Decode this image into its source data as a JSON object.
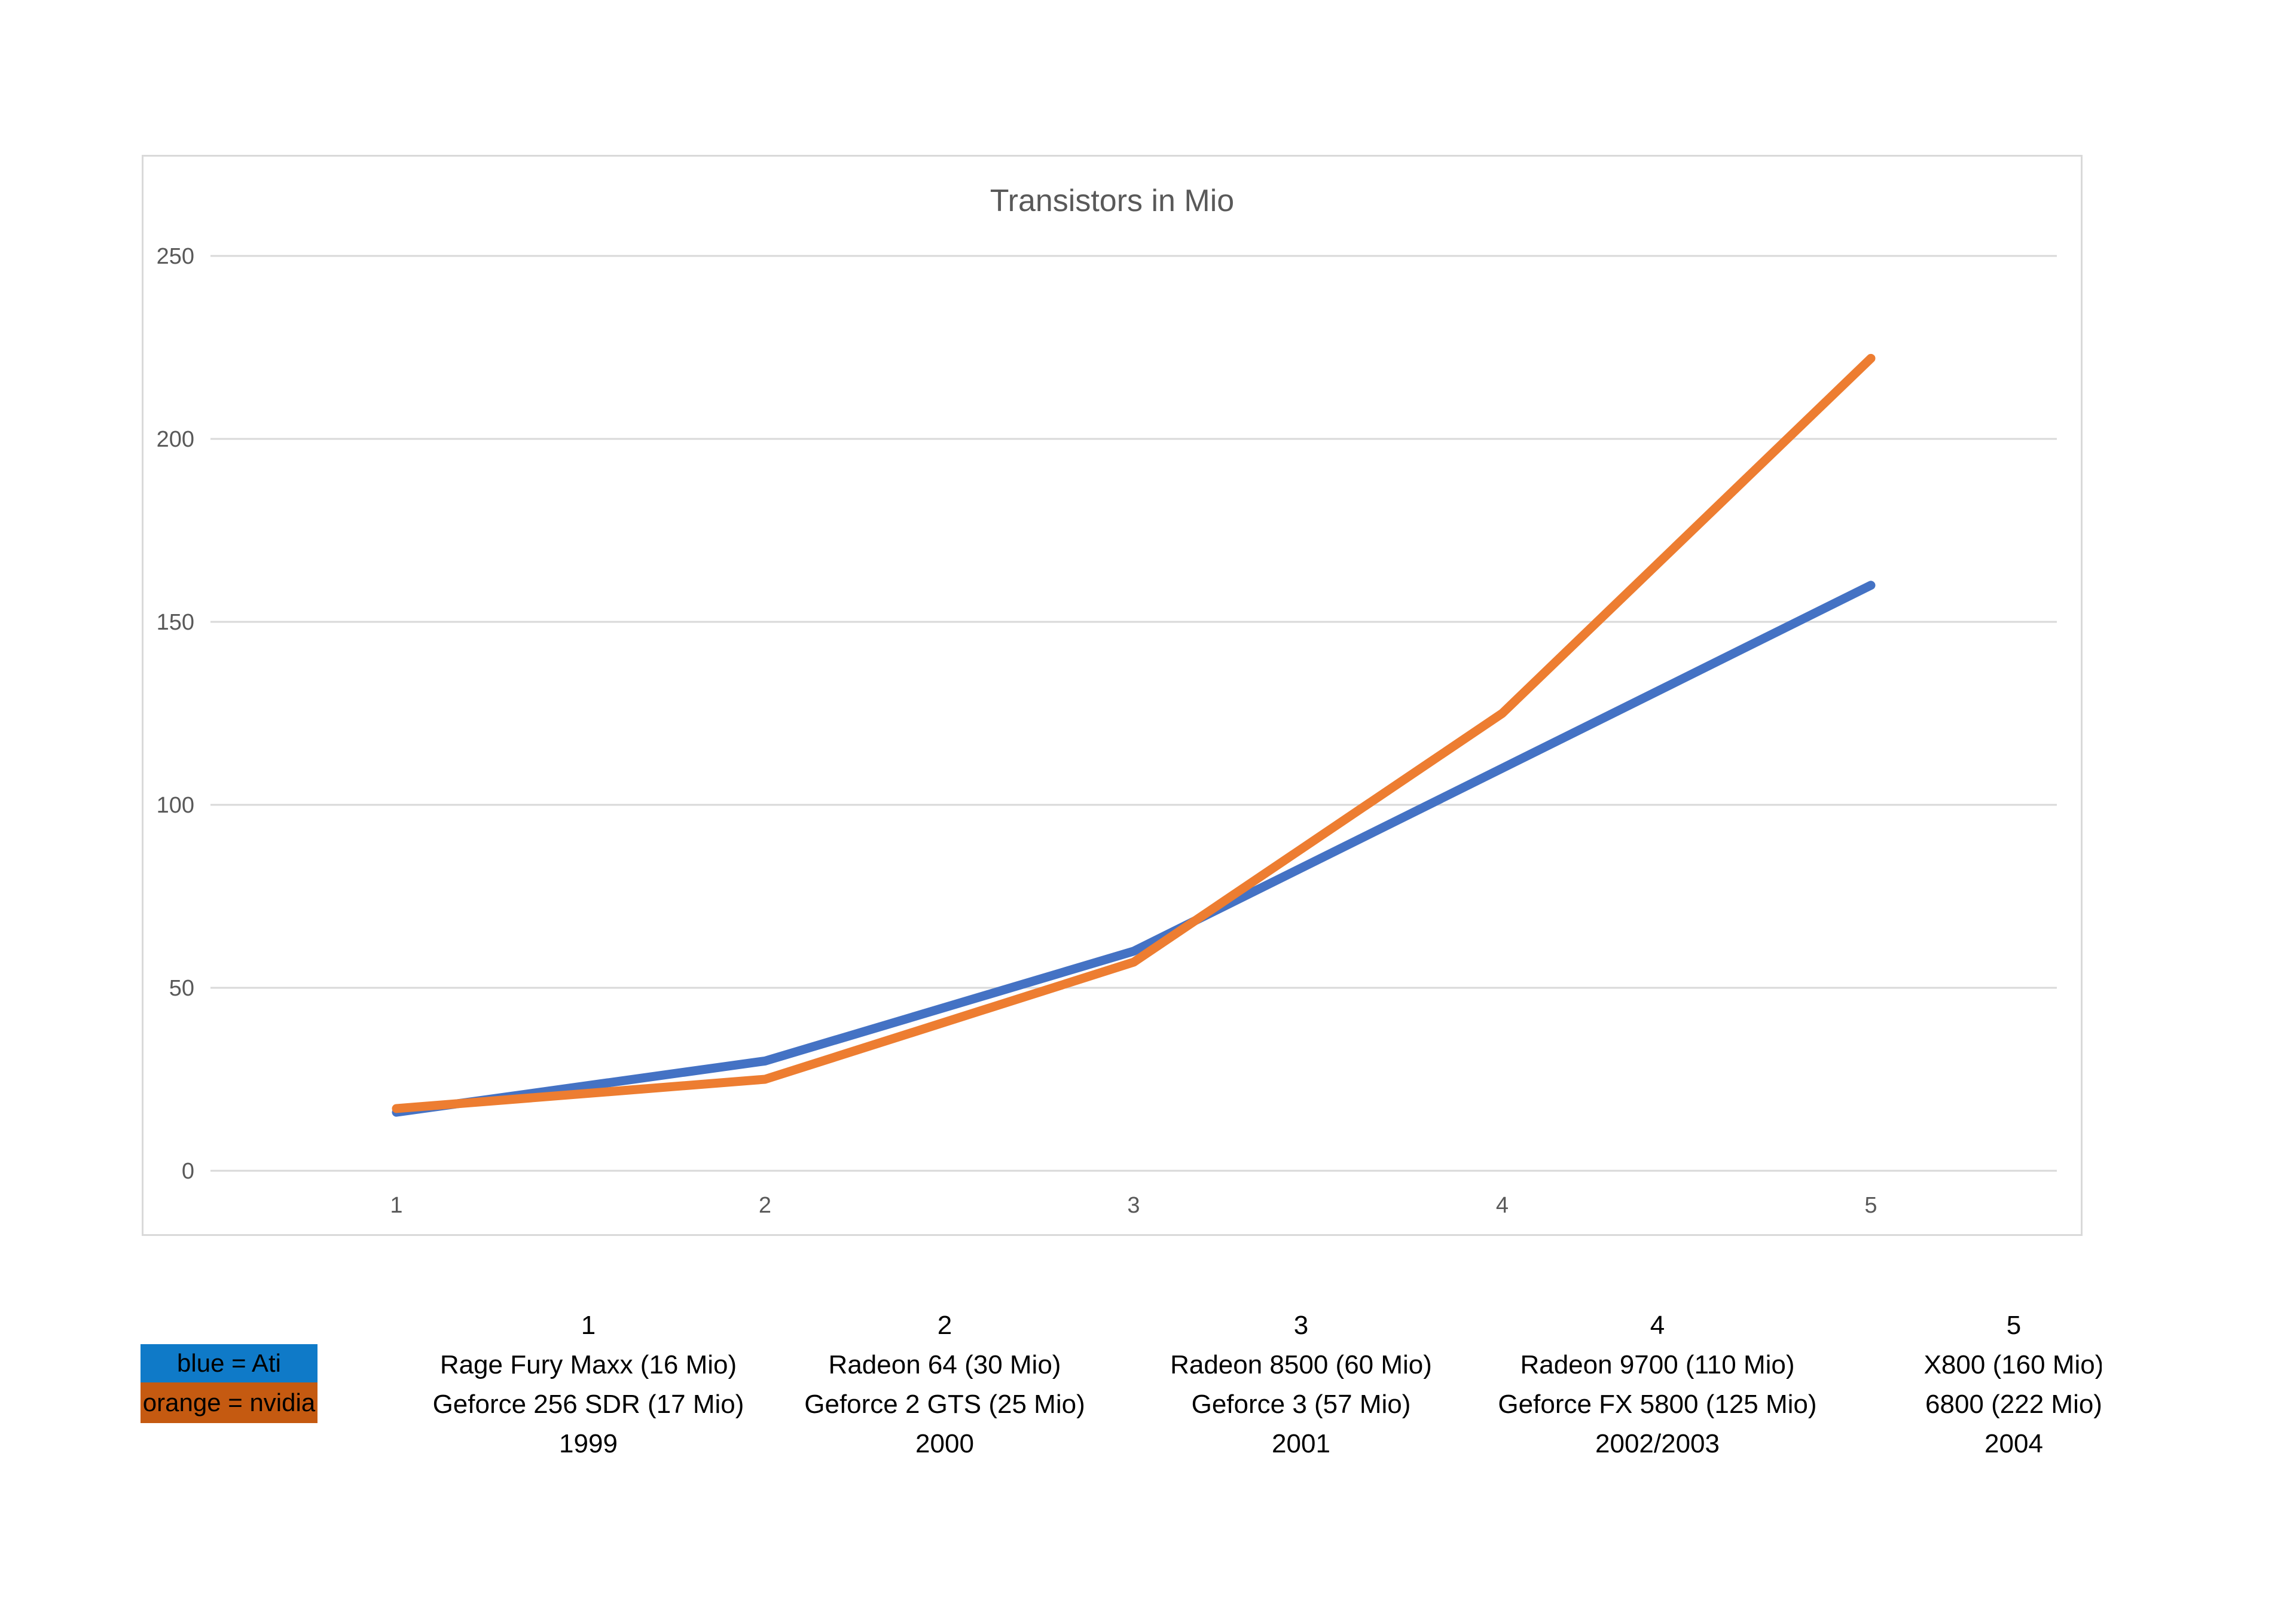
{
  "chart_data": {
    "type": "line",
    "title": "Transistors in Mio",
    "categories": [
      "1",
      "2",
      "3",
      "4",
      "5"
    ],
    "series": [
      {
        "name": "Ati",
        "color": "#4472C4",
        "values": [
          16,
          30,
          60,
          110,
          160
        ]
      },
      {
        "name": "nvidia",
        "color": "#ED7D31",
        "values": [
          17,
          25,
          57,
          125,
          222
        ]
      }
    ],
    "xlabel": "",
    "ylabel": "",
    "ylim": [
      0,
      250
    ],
    "yticks": [
      0,
      50,
      100,
      150,
      200,
      250
    ],
    "ytick_interval": 50,
    "grid": "horizontal",
    "legend_position": "below-left",
    "colors": {
      "title": "#595959",
      "ticks": "#595959",
      "grid": "#d9d9d9",
      "border": "#d9d9d9",
      "plot_background": "#ffffff"
    }
  },
  "legend": {
    "items": [
      {
        "label": "blue = Ati",
        "color": "#0F7AC8",
        "text_color": "#000000"
      },
      {
        "label": "orange = nvidia",
        "color": "#C55A11",
        "text_color": "#000000"
      }
    ]
  },
  "table": {
    "columns": [
      {
        "number": "1",
        "ati": "Rage Fury Maxx (16 Mio)",
        "nvidia": "Geforce 256 SDR (17 Mio)",
        "year": "1999"
      },
      {
        "number": "2",
        "ati": "Radeon 64 (30 Mio)",
        "nvidia": "Geforce 2 GTS (25 Mio)",
        "year": "2000"
      },
      {
        "number": "3",
        "ati": "Radeon 8500 (60 Mio)",
        "nvidia": "Geforce 3 (57 Mio)",
        "year": "2001"
      },
      {
        "number": "4",
        "ati": "Radeon 9700 (110 Mio)",
        "nvidia": "Geforce FX 5800 (125 Mio)",
        "year": "2002/2003"
      },
      {
        "number": "5",
        "ati": "X800 (160 Mio)",
        "nvidia": "6800 (222 Mio)",
        "year": "2004"
      }
    ]
  }
}
